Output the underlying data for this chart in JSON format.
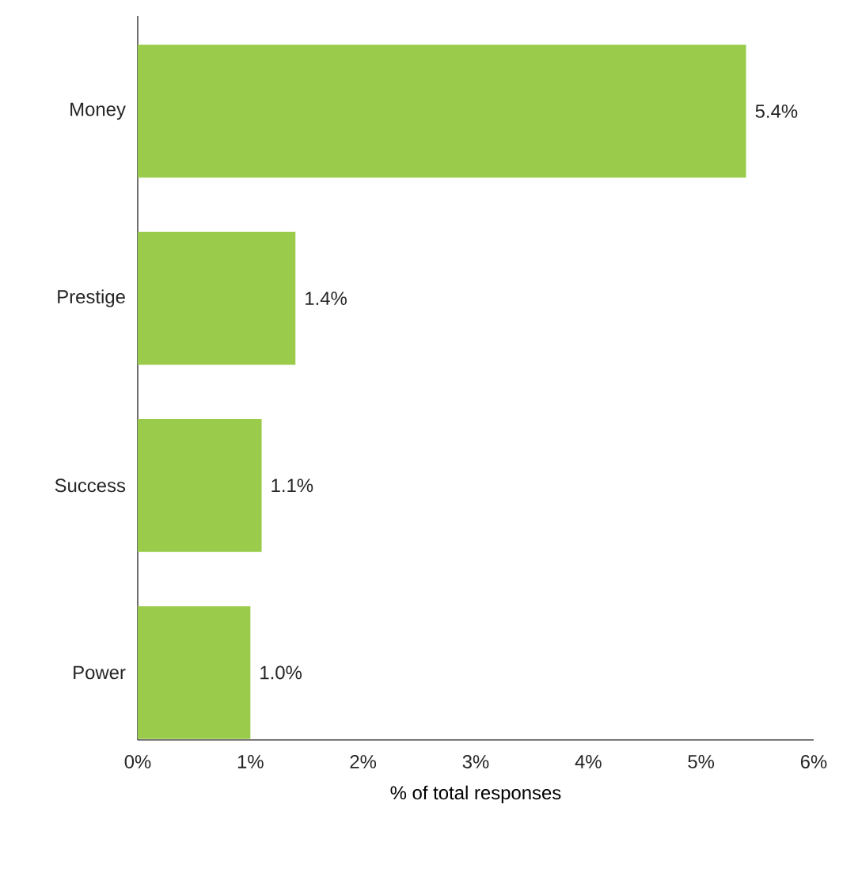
{
  "chart_data": {
    "type": "bar",
    "orientation": "horizontal",
    "categories": [
      "Money",
      "Prestige",
      "Success",
      "Power"
    ],
    "values": [
      5.4,
      1.4,
      1.1,
      1.0
    ],
    "value_labels": [
      "5.4%",
      "1.4%",
      "1.1%",
      "1.0%"
    ],
    "color": "#9acb4b",
    "xlabel": "% of total responses",
    "xlim": [
      0,
      6
    ],
    "xticks": [
      {
        "value": 0,
        "label": "0%"
      },
      {
        "value": 1,
        "label": "1%"
      },
      {
        "value": 2,
        "label": "2%"
      },
      {
        "value": 3,
        "label": "3%"
      },
      {
        "value": 4,
        "label": "4%"
      },
      {
        "value": 5,
        "label": "5%"
      },
      {
        "value": 6,
        "label": "6%"
      }
    ],
    "grid": false
  }
}
